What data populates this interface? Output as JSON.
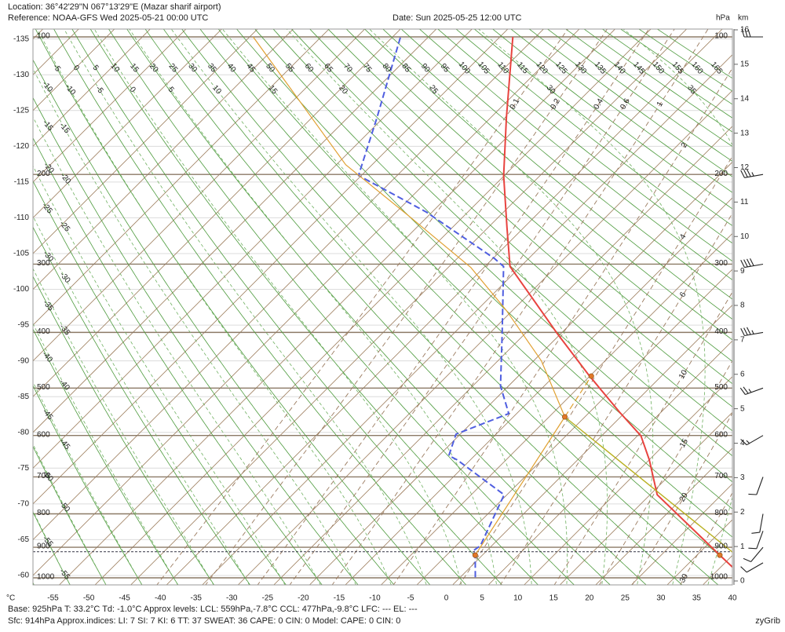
{
  "chart_data": {
    "type": "skewt",
    "title": "Location:  36°42'29\"N  067°13'29\"E (Mazar sharif airport)",
    "subtitle": "Reference: NOAA-GFS Wed 2025-05-21 00:00 UTC",
    "date": "Date: Sun 2025-05-25 12:00 UTC",
    "x_unit": "°C",
    "pressure_unit": "hPa",
    "height_unit": "km",
    "footer": [
      "Base: 925hPa  T: 33.2°C  Td: -1.0°C    Approx levels:  LCL: 559hPa,-7.8°C   CCL: 477hPa,-9.8°C   LFC: ---   EL: ---",
      "Sfc: 914hPa       Approx.indices:  LI: 7   SI: 7   KI: 6   TT: 37   SWEAT: 36     CAPE: 0  CIN: 0          Model: CAPE: 0 CIN: 0"
    ],
    "credit": "zyGrib",
    "xlim": [
      -57.8,
      40
    ],
    "xticks": [
      -55,
      -50,
      -45,
      -40,
      -35,
      -30,
      -25,
      -20,
      -15,
      -10,
      -5,
      0,
      5,
      10,
      15,
      20,
      25,
      30,
      35,
      40
    ],
    "left_ticks": [
      -135,
      -130,
      -125,
      -120,
      -115,
      -110,
      -105,
      -100,
      -95,
      -90,
      -85,
      -80,
      -75,
      -70,
      -65,
      -60
    ],
    "plim": [
      100,
      1000
    ],
    "pressure_ticks": [
      100,
      200,
      300,
      400,
      500,
      600,
      700,
      800,
      900,
      1000
    ],
    "km_lim": [
      0,
      16
    ],
    "km_ticks": [
      0,
      1,
      2,
      3,
      4,
      5,
      6,
      7,
      8,
      9,
      10,
      11,
      12,
      13,
      14,
      15,
      16
    ],
    "dry_adiabats": [
      -65,
      -60,
      -55,
      -50,
      -45,
      -40,
      -35,
      -30,
      -25,
      -20,
      -15,
      -10,
      -5,
      0,
      5,
      10,
      15,
      20,
      25,
      30,
      35,
      40,
      45,
      50,
      55,
      60,
      65,
      70,
      75,
      80,
      85,
      90,
      95,
      100,
      105,
      110,
      115,
      120,
      125,
      130,
      135,
      140,
      145,
      150,
      155,
      160,
      165
    ],
    "moist_adiabats": [
      -60,
      -55,
      -50,
      -45,
      -40,
      -35,
      -30,
      -25,
      -20,
      -15,
      -10,
      -5,
      0,
      5,
      10,
      15,
      20,
      25,
      30,
      35
    ],
    "mixing_ratios": [
      0.1,
      0.2,
      0.4,
      0.6,
      1,
      2,
      4,
      6,
      10,
      15,
      20,
      30
    ],
    "surface_pressure": 914,
    "series": [
      {
        "color": "#e8433f",
        "dashed": false,
        "width": 2,
        "pressure": [
          968,
          925,
          747,
          657,
          601,
          549,
          475,
          402,
          303,
          255,
          201,
          152,
          100
        ],
        "values": [
          37.0,
          33.2,
          16.0,
          10.0,
          5.5,
          -0.8,
          -10.3,
          -20.5,
          -36.5,
          -42.4,
          -50.1,
          -57.8,
          -68.2
        ]
      },
      {
        "color": "#4f5ee0",
        "dashed": true,
        "width": 2,
        "pressure": [
          998,
          925,
          912,
          895,
          747,
          657,
          647,
          597,
          552,
          496,
          402,
          303,
          293,
          238,
          201,
          152,
          100
        ],
        "values": [
          2.1,
          -1.0,
          -1.9,
          -1.6,
          -5.4,
          -16.9,
          -18.6,
          -20.6,
          -16.1,
          -21.1,
          -28.2,
          -37.4,
          -39.7,
          -55.8,
          -70.4,
          -75.9,
          -83.9
        ]
      },
      {
        "color": "#e0a030",
        "dashed": false,
        "width": 1.2,
        "pressure": [
          925,
          559,
          449,
          365,
          304,
          242,
          191,
          100
        ],
        "values": [
          -1.0,
          -7.8,
          -18.9,
          -30.9,
          -41.9,
          -57.8,
          -73.7,
          -104.5
        ]
      },
      {
        "color": "#b8b020",
        "dashed": false,
        "width": 1.4,
        "pressure": [
          559,
          919
        ],
        "values": [
          -7.8,
          34.9
        ]
      },
      {
        "color": "#e0a030",
        "dashed": true,
        "width": 1.2,
        "pressure": [
          559,
          477
        ],
        "values": [
          -7.8,
          -9.8
        ]
      }
    ],
    "markers": {
      "color": "#e07828",
      "pressure": [
        925,
        925,
        559,
        477
      ],
      "values": [
        33.2,
        -1.0,
        -7.8,
        -9.8
      ]
    },
    "wind": {
      "color": "#222222",
      "pressure": [
        100,
        200,
        300,
        400,
        500,
        600,
        700,
        800,
        850,
        900,
        950
      ],
      "direction": [
        270,
        260,
        260,
        260,
        250,
        240,
        200,
        190,
        200,
        220,
        240
      ],
      "speed": [
        30,
        35,
        40,
        35,
        25,
        15,
        10,
        10,
        10,
        10,
        10
      ]
    }
  }
}
